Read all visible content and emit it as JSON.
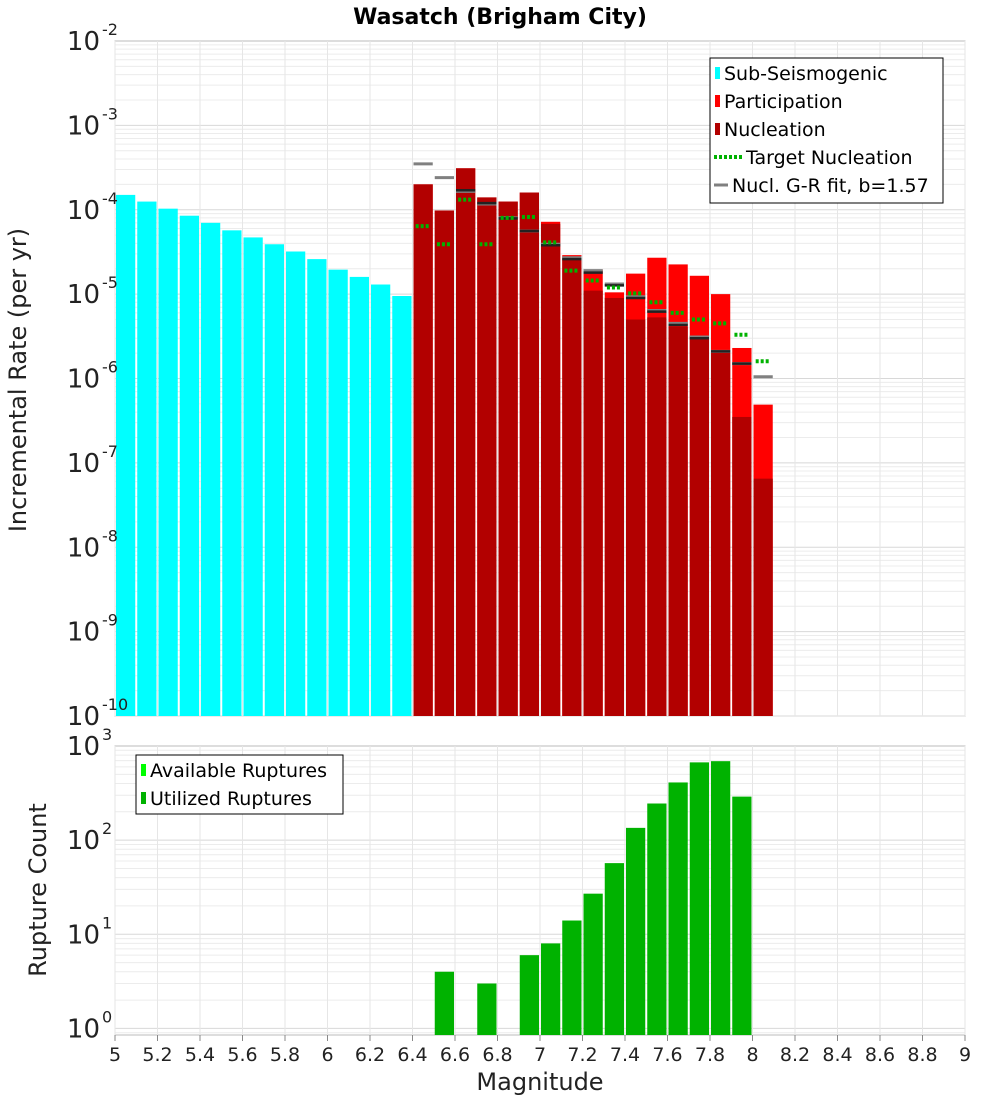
{
  "chart_data": [
    {
      "type": "bar",
      "title": "Wasatch (Brigham City)",
      "xlabel": "",
      "ylabel": "Incremental Rate (per yr)",
      "xlim": [
        5,
        9
      ],
      "ylim_exp": [
        -10,
        -2
      ],
      "y_tick_exponents": [
        "-10",
        "-9",
        "-8",
        "-7",
        "-6",
        "-5",
        "-4",
        "-3",
        "-2"
      ],
      "legend_position": "top-right",
      "legend": [
        {
          "label": "Sub-Seismogenic",
          "color": "#00ffff",
          "style": "box"
        },
        {
          "label": "Participation",
          "color": "#ff0000",
          "style": "box"
        },
        {
          "label": "Nucleation",
          "color": "#b20000",
          "style": "box"
        },
        {
          "label": "Target Nucleation",
          "color": "#00b200",
          "style": "dotted"
        },
        {
          "label": "Nucl. G-R fit, b=1.57",
          "color": "#808080",
          "style": "line"
        }
      ],
      "bin_width": 0.1,
      "sub_seismogenic": {
        "x": [
          5.05,
          5.15,
          5.25,
          5.35,
          5.45,
          5.55,
          5.65,
          5.75,
          5.85,
          5.95,
          6.05,
          6.15,
          6.25,
          6.35
        ],
        "y": [
          0.00015,
          0.000125,
          0.000103,
          8.5e-05,
          7e-05,
          5.7e-05,
          4.7e-05,
          3.9e-05,
          3.2e-05,
          2.6e-05,
          1.95e-05,
          1.6e-05,
          1.3e-05,
          9.5e-06
        ]
      },
      "participation": {
        "x": [
          6.45,
          6.55,
          6.65,
          6.75,
          6.85,
          6.95,
          7.05,
          7.15,
          7.25,
          7.35,
          7.45,
          7.55,
          7.65,
          7.75,
          7.85,
          7.95,
          8.05
        ],
        "y": [
          0.0002,
          9.8e-05,
          0.00031,
          0.00014,
          0.000125,
          0.00016,
          7.2e-05,
          2.9e-05,
          1.95e-05,
          1.05e-05,
          1.75e-05,
          2.7e-05,
          2.25e-05,
          1.65e-05,
          1e-05,
          2.3e-06,
          4.9e-07
        ]
      },
      "nucleation": {
        "x": [
          6.45,
          6.55,
          6.65,
          6.75,
          6.85,
          6.95,
          7.05,
          7.15,
          7.25,
          7.35,
          7.45,
          7.55,
          7.65,
          7.75,
          7.85,
          7.95,
          8.05
        ],
        "y": [
          0.0002,
          9.8e-05,
          0.00031,
          0.00014,
          0.000125,
          0.00016,
          6.8e-05,
          2.6e-05,
          1.1e-05,
          9e-06,
          5e-06,
          5.3e-06,
          4.1e-06,
          3.2e-06,
          2e-06,
          3.5e-07,
          6.5e-08
        ]
      },
      "target_nucleation": {
        "x": [
          6.45,
          6.55,
          6.65,
          6.75,
          6.85,
          6.95,
          7.05,
          7.15,
          7.25,
          7.35,
          7.45,
          7.55,
          7.65,
          7.75,
          7.85,
          7.95,
          8.05
        ],
        "y": [
          6.4e-05,
          3.9e-05,
          0.000132,
          3.9e-05,
          8e-05,
          8.2e-05,
          4.1e-05,
          1.9e-05,
          1.45e-05,
          1.2e-05,
          1.02e-05,
          8e-06,
          6e-06,
          5e-06,
          4.5e-06,
          3.3e-06,
          1.6e-06
        ]
      },
      "gr_fit": {
        "x": [
          6.45,
          6.55,
          6.65,
          6.75,
          6.85,
          6.95,
          7.05,
          7.15,
          7.25,
          7.35,
          7.45,
          7.55,
          7.65,
          7.75,
          7.85,
          7.95,
          8.05
        ],
        "y": [
          0.00035,
          0.00024,
          0.000165,
          0.000117,
          8e-05,
          5.6e-05,
          3.9e-05,
          2.7e-05,
          1.9e-05,
          1.32e-05,
          9.3e-06,
          6.4e-06,
          4.5e-06,
          3.1e-06,
          2.1e-06,
          1.5e-06,
          1.05e-06
        ]
      },
      "nucleation_fit_marks": {
        "x": [
          6.65,
          6.75,
          6.85,
          6.95,
          7.05,
          7.15,
          7.25,
          7.35,
          7.45,
          7.55,
          7.65,
          7.75,
          7.85,
          7.95
        ],
        "y": [
          0.00017,
          0.00012,
          7.9e-05,
          5.6e-05,
          3.8e-05,
          2.6e-05,
          1.8e-05,
          1.27e-05,
          9e-06,
          6.2e-06,
          4.3e-06,
          3e-06,
          2.1e-06,
          1.5e-06
        ]
      }
    },
    {
      "type": "bar",
      "title": "",
      "xlabel": "Magnitude",
      "ylabel": "Rupture Count",
      "xlim": [
        5,
        9
      ],
      "ylim_exp": [
        -0.07,
        3
      ],
      "y_tick_exponents": [
        "0",
        "1",
        "2",
        "3"
      ],
      "x_ticks": [
        "5",
        "5.2",
        "5.4",
        "5.6",
        "5.8",
        "6",
        "6.2",
        "6.4",
        "6.6",
        "6.8",
        "7",
        "7.2",
        "7.4",
        "7.6",
        "7.8",
        "8",
        "8.2",
        "8.4",
        "8.6",
        "8.8",
        "9"
      ],
      "legend_position": "top-left",
      "legend": [
        {
          "label": "Available Ruptures",
          "color": "#00ff00",
          "style": "box"
        },
        {
          "label": "Utilized Ruptures",
          "color": "#00b200",
          "style": "box"
        }
      ],
      "bin_width": 0.1,
      "utilized": {
        "x": [
          6.55,
          6.75,
          6.95,
          7.05,
          7.15,
          7.25,
          7.35,
          7.45,
          7.55,
          7.65,
          7.75,
          7.85,
          7.95
        ],
        "y": [
          4,
          3,
          6,
          8,
          14,
          27,
          57,
          135,
          245,
          410,
          670,
          690,
          290
        ]
      }
    }
  ]
}
